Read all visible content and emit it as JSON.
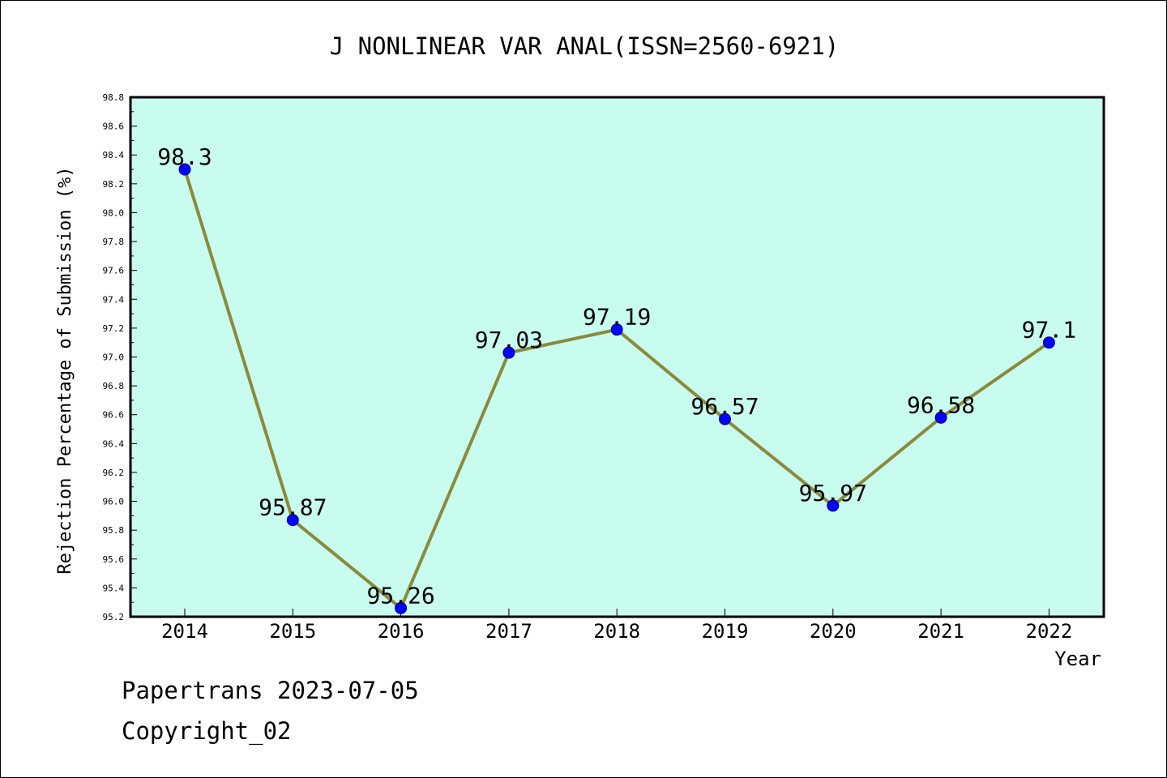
{
  "chart_data": {
    "type": "line",
    "title": "J NONLINEAR VAR ANAL(ISSN=2560-6921)",
    "xlabel": "Year",
    "ylabel": "Rejection Percentage of Submission (%)",
    "categories": [
      "2014",
      "2015",
      "2016",
      "2017",
      "2018",
      "2019",
      "2020",
      "2021",
      "2022"
    ],
    "values": [
      98.3,
      95.87,
      95.26,
      97.03,
      97.19,
      96.57,
      95.97,
      96.58,
      97.1
    ],
    "data_labels": [
      "98.3",
      "95.87",
      "95.26",
      "97.03",
      "97.19",
      "96.57",
      "95.97",
      "96.58",
      "97.1"
    ],
    "ylim": [
      95.2,
      98.8
    ],
    "yticks": [
      95.2,
      95.4,
      95.6,
      95.8,
      96.0,
      96.2,
      96.4,
      96.6,
      96.8,
      97.0,
      97.2,
      97.4,
      97.6,
      97.8,
      98.0,
      98.2,
      98.4,
      98.6,
      98.8
    ],
    "ytick_labels": [
      "95.2",
      "95.4",
      "95.6",
      "95.8",
      "96.0",
      "96.2",
      "96.4",
      "96.6",
      "96.8",
      "97.0",
      "97.2",
      "97.4",
      "97.6",
      "97.8",
      "98.0",
      "98.2",
      "98.4",
      "98.6",
      "98.8"
    ],
    "grid": false,
    "legend": "none",
    "colors": {
      "plot_background": "#c8fcee",
      "line": "#8b8a3c",
      "marker": "#0000ff",
      "axis": "#000000"
    }
  },
  "footer": {
    "source": "Papertrans 2023-07-05",
    "copyright": "Copyright_02"
  }
}
